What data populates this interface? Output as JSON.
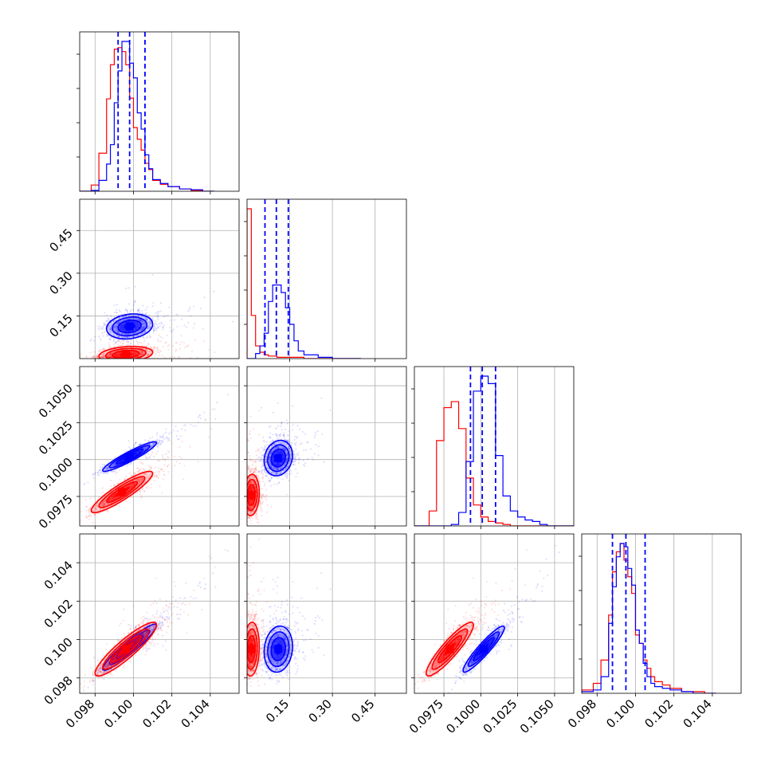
{
  "chart_data": {
    "type": "corner",
    "colors": {
      "series_a": "#0000ff",
      "series_b": "#ff0000"
    },
    "params": [
      {
        "id": "p0",
        "range": [
          0.0972,
          0.1055
        ],
        "ticks": [
          0.098,
          0.1,
          0.102,
          0.104
        ],
        "tick_labels": [
          "0.098",
          "0.100",
          "0.102",
          "0.104"
        ]
      },
      {
        "id": "p1",
        "range": [
          0.0,
          0.56
        ],
        "ticks": [
          0.15,
          0.3,
          0.45
        ],
        "tick_labels": [
          "0.15",
          "0.30",
          "0.45"
        ]
      },
      {
        "id": "p2",
        "range": [
          0.0955,
          0.1063
        ],
        "ticks": [
          0.0975,
          0.1,
          0.1025,
          0.105
        ],
        "tick_labels": [
          "0.0975",
          "0.1000",
          "0.1025",
          "0.1050"
        ]
      },
      {
        "id": "p3",
        "range": [
          0.0972,
          0.1055
        ],
        "ticks": [
          0.098,
          0.1,
          0.102,
          0.104
        ],
        "tick_labels": [
          "0.098",
          "0.100",
          "0.102",
          "0.104"
        ]
      }
    ],
    "marginals": [
      {
        "param": 0,
        "quantiles": [
          0.0992,
          0.0998,
          0.1006
        ],
        "series": [
          {
            "name": "blue",
            "color": "#0000ff",
            "edges": [
              0.0972,
              0.0978,
              0.0982,
              0.0986,
              0.0988,
              0.099,
              0.0992,
              0.0994,
              0.0996,
              0.0998,
              0.1,
              0.1002,
              0.1004,
              0.1006,
              0.1008,
              0.101,
              0.1014,
              0.1018,
              0.1024,
              0.103,
              0.1036,
              0.1042
            ],
            "counts": [
              0,
              1,
              14,
              35,
              60,
              114,
              155,
              193,
              193,
              165,
              146,
              101,
              80,
              47,
              29,
              15,
              10,
              6,
              3,
              2,
              0
            ]
          },
          {
            "name": "red",
            "color": "#ff0000",
            "edges": [
              0.0972,
              0.0978,
              0.0982,
              0.0986,
              0.0988,
              0.099,
              0.0992,
              0.0994,
              0.0996,
              0.0998,
              0.1,
              0.1002,
              0.1004,
              0.1006,
              0.1008,
              0.101,
              0.1014,
              0.1018,
              0.1024,
              0.103,
              0.1036,
              0.1042
            ],
            "counts": [
              0,
              8,
              49,
              119,
              163,
              183,
              185,
              180,
              163,
              120,
              82,
              67,
              53,
              36,
              28,
              14,
              9,
              6,
              3,
              1,
              0
            ]
          }
        ]
      },
      {
        "param": 1,
        "quantiles": [
          0.063,
          0.103,
          0.145
        ],
        "series": [
          {
            "name": "blue",
            "color": "#0000ff",
            "edges": [
              0.0,
              0.015,
              0.03,
              0.045,
              0.06,
              0.075,
              0.09,
              0.105,
              0.12,
              0.135,
              0.15,
              0.165,
              0.18,
              0.2,
              0.25,
              0.3,
              0.4
            ],
            "counts": [
              0,
              0,
              4,
              10,
              20,
              45,
              58,
              58,
              52,
              40,
              27,
              14,
              6,
              3,
              1,
              0
            ]
          },
          {
            "name": "red",
            "color": "#ff0000",
            "edges": [
              0.0,
              0.015,
              0.03,
              0.045,
              0.06,
              0.075,
              0.09,
              0.105,
              0.12,
              0.135,
              0.15,
              0.165,
              0.18,
              0.2,
              0.25,
              0.3,
              0.4
            ],
            "counts": [
              118,
              34,
              10,
              5,
              3,
              2,
              2,
              1,
              1,
              1,
              1,
              1,
              1,
              0,
              0,
              0
            ]
          }
        ]
      },
      {
        "param": 2,
        "quantiles": [
          0.0993,
          0.1001,
          0.101
        ],
        "series": [
          {
            "name": "blue",
            "color": "#0000ff",
            "edges": [
              0.0955,
              0.0965,
              0.097,
              0.0975,
              0.098,
              0.0985,
              0.099,
              0.0995,
              0.1,
              0.1005,
              0.101,
              0.1015,
              0.102,
              0.1025,
              0.103,
              0.1035,
              0.104,
              0.1045,
              0.1055,
              0.1063
            ],
            "counts": [
              0,
              0,
              0,
              0,
              1,
              9,
              43,
              90,
              100,
              95,
              47,
              20,
              10,
              6,
              4,
              3,
              1,
              0,
              0
            ]
          },
          {
            "name": "red",
            "color": "#ff0000",
            "edges": [
              0.0955,
              0.0965,
              0.097,
              0.0975,
              0.098,
              0.0985,
              0.099,
              0.0995,
              0.1,
              0.1005,
              0.101,
              0.1015,
              0.102,
              0.1025,
              0.103,
              0.1035,
              0.104,
              0.1045,
              0.1055,
              0.1063
            ],
            "counts": [
              0,
              10,
              57,
              79,
              83,
              65,
              32,
              14,
              6,
              3,
              2,
              1,
              0,
              0,
              0,
              0,
              0,
              0,
              0
            ]
          }
        ]
      },
      {
        "param": 3,
        "quantiles": [
          0.0988,
          0.0995,
          0.1005
        ],
        "series": [
          {
            "name": "blue",
            "color": "#0000ff",
            "edges": [
              0.0972,
              0.0978,
              0.0982,
              0.0986,
              0.0988,
              0.099,
              0.0992,
              0.0994,
              0.0996,
              0.0998,
              0.1,
              0.1002,
              0.1004,
              0.1006,
              0.1008,
              0.101,
              0.1014,
              0.1018,
              0.1024,
              0.103,
              0.1036,
              0.1042
            ],
            "counts": [
              1,
              2,
              10,
              42,
              64,
              82,
              90,
              88,
              75,
              65,
              38,
              30,
              18,
              10,
              6,
              4,
              3,
              2,
              1,
              0,
              0
            ]
          },
          {
            "name": "red",
            "color": "#ff0000",
            "edges": [
              0.0972,
              0.0978,
              0.0982,
              0.0986,
              0.0988,
              0.099,
              0.0992,
              0.0994,
              0.0996,
              0.0998,
              0.1,
              0.1002,
              0.1004,
              0.1006,
              0.1008,
              0.101,
              0.1014,
              0.1018,
              0.1024,
              0.103,
              0.1036,
              0.1042
            ],
            "counts": [
              2,
              6,
              20,
              47,
              73,
              85,
              90,
              80,
              70,
              60,
              35,
              30,
              20,
              15,
              10,
              7,
              5,
              3,
              1,
              1,
              0
            ]
          }
        ]
      }
    ],
    "joints": [
      {
        "x_param": 0,
        "y_param": 1,
        "series": [
          {
            "name": "blue",
            "color": "#0000ff",
            "mean": [
              0.0998,
              0.113
            ],
            "sd": [
              0.0006,
              0.022
            ],
            "rho": 0.18,
            "samples": 1100
          },
          {
            "name": "red",
            "color": "#ff0000",
            "mean": [
              0.0996,
              0.015
            ],
            "sd": [
              0.0007,
              0.014
            ],
            "rho": 0.25,
            "samples": 1100
          }
        ]
      },
      {
        "x_param": 0,
        "y_param": 2,
        "series": [
          {
            "name": "blue",
            "color": "#0000ff",
            "mean": [
              0.0998,
              0.1002
            ],
            "sd": [
              0.0007,
              0.0005
            ],
            "rho": 0.93,
            "samples": 1000
          },
          {
            "name": "red",
            "color": "#ff0000",
            "mean": [
              0.0994,
              0.0978
            ],
            "sd": [
              0.0008,
              0.0007
            ],
            "rho": 0.9,
            "samples": 1000
          }
        ]
      },
      {
        "x_param": 1,
        "y_param": 2,
        "series": [
          {
            "name": "blue",
            "color": "#0000ff",
            "mean": [
              0.11,
              0.1001
            ],
            "sd": [
              0.025,
              0.0006
            ],
            "rho": 0.15,
            "samples": 1100
          },
          {
            "name": "red",
            "color": "#ff0000",
            "mean": [
              0.015,
              0.0976
            ],
            "sd": [
              0.014,
              0.0007
            ],
            "rho": 0.1,
            "samples": 1100
          }
        ]
      },
      {
        "x_param": 0,
        "y_param": 3,
        "series": [
          {
            "name": "blue",
            "color": "#0000ff",
            "mean": [
              0.0998,
              0.0996
            ],
            "sd": [
              0.0007,
              0.0006
            ],
            "rho": 0.94,
            "samples": 1000
          },
          {
            "name": "red",
            "color": "#ff0000",
            "mean": [
              0.0996,
              0.0995
            ],
            "sd": [
              0.0008,
              0.0007
            ],
            "rho": 0.9,
            "samples": 1000
          }
        ]
      },
      {
        "x_param": 1,
        "y_param": 3,
        "series": [
          {
            "name": "blue",
            "color": "#0000ff",
            "mean": [
              0.11,
              0.0995
            ],
            "sd": [
              0.025,
              0.0006
            ],
            "rho": 0.12,
            "samples": 1100
          },
          {
            "name": "red",
            "color": "#ff0000",
            "mean": [
              0.015,
              0.0995
            ],
            "sd": [
              0.014,
              0.0007
            ],
            "rho": 0.1,
            "samples": 1100
          }
        ]
      },
      {
        "x_param": 2,
        "y_param": 3,
        "series": [
          {
            "name": "blue",
            "color": "#0000ff",
            "mean": [
              0.1002,
              0.0995
            ],
            "sd": [
              0.0007,
              0.0006
            ],
            "rho": 0.93,
            "samples": 1000
          },
          {
            "name": "red",
            "color": "#ff0000",
            "mean": [
              0.0979,
              0.0995
            ],
            "sd": [
              0.0008,
              0.0007
            ],
            "rho": 0.9,
            "samples": 1000
          }
        ]
      }
    ]
  }
}
